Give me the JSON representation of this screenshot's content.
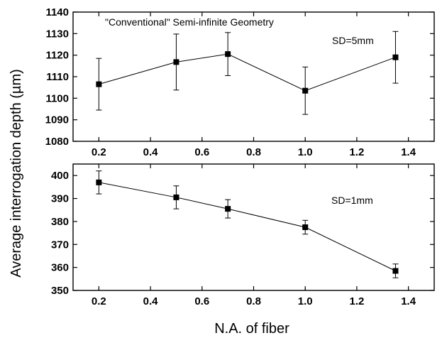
{
  "ylabel": "Average interrogation depth (µm)",
  "xlabel": "N.A. of fiber",
  "chart_data": [
    {
      "type": "line",
      "title": "\"Conventional\" Semi-infinite Geometry",
      "annotation": "SD=5mm",
      "x": [
        0.2,
        0.5,
        0.7,
        1.0,
        1.35
      ],
      "y": [
        1106.5,
        1116.8,
        1120.5,
        1103.5,
        1119.0
      ],
      "yerr": [
        12.0,
        13.0,
        10.0,
        11.0,
        12.0
      ],
      "xlim": [
        0.1,
        1.5
      ],
      "ylim": [
        1080,
        1140
      ],
      "xticks": [
        "0.2",
        "0.4",
        "0.6",
        "0.8",
        "1.0",
        "1.2",
        "1.4"
      ],
      "yticks": [
        "1080",
        "1090",
        "1100",
        "1110",
        "1120",
        "1130",
        "1140"
      ],
      "marker": "square",
      "grid": false
    },
    {
      "type": "line",
      "annotation": "SD=1mm",
      "x": [
        0.2,
        0.5,
        0.7,
        1.0,
        1.35
      ],
      "y": [
        397.0,
        390.5,
        385.5,
        377.5,
        358.5
      ],
      "yerr": [
        5.0,
        5.0,
        4.0,
        3.0,
        3.0
      ],
      "xlim": [
        0.1,
        1.5
      ],
      "ylim": [
        350,
        405
      ],
      "xticks": [
        "0.2",
        "0.4",
        "0.6",
        "0.8",
        "1.0",
        "1.2",
        "1.4"
      ],
      "yticks": [
        "350",
        "360",
        "370",
        "380",
        "390",
        "400"
      ],
      "marker": "square",
      "grid": false
    }
  ]
}
